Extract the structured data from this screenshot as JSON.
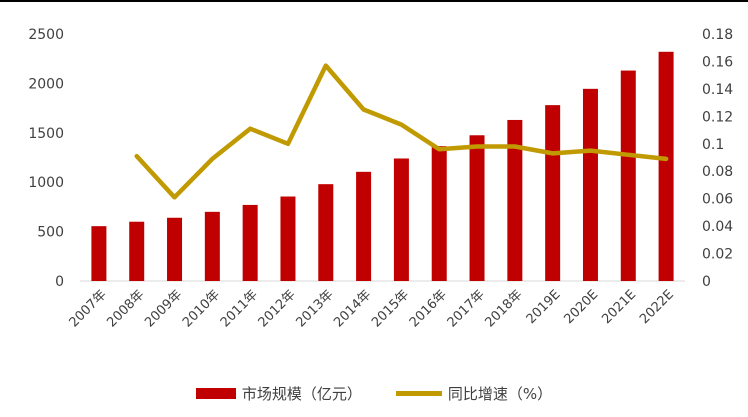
{
  "chart_data": {
    "type": "bar+line",
    "categories": [
      "2007年",
      "2008年",
      "2009年",
      "2010年",
      "2011年",
      "2012年",
      "2013年",
      "2014年",
      "2015年",
      "2016年",
      "2017年",
      "2018年",
      "2019E",
      "2020E",
      "2021E",
      "2022E"
    ],
    "series": [
      {
        "name": "市场规模（亿元）",
        "type": "bar",
        "axis": "left",
        "color": "#c00000",
        "values": [
          555,
          600,
          640,
          700,
          770,
          855,
          980,
          1105,
          1240,
          1365,
          1475,
          1630,
          1780,
          1945,
          2130,
          2320
        ]
      },
      {
        "name": "同比增速（%）",
        "type": "line",
        "axis": "right",
        "color": "#c09a00",
        "values": [
          null,
          0.091,
          0.061,
          0.089,
          0.111,
          0.1,
          0.157,
          0.125,
          0.114,
          0.096,
          0.098,
          0.098,
          0.093,
          0.095,
          0.092,
          0.089
        ]
      }
    ],
    "y_left": {
      "min": 0,
      "max": 2500,
      "ticks": [
        0,
        500,
        1000,
        1500,
        2000,
        2500
      ]
    },
    "y_right": {
      "min": 0,
      "max": 0.18,
      "ticks": [
        "0",
        "0.02",
        "0.04",
        "0.06",
        "0.08",
        "0.1",
        "0.12",
        "0.14",
        "0.16",
        "0.18"
      ]
    },
    "grid": false,
    "legend": "bottom-center"
  }
}
